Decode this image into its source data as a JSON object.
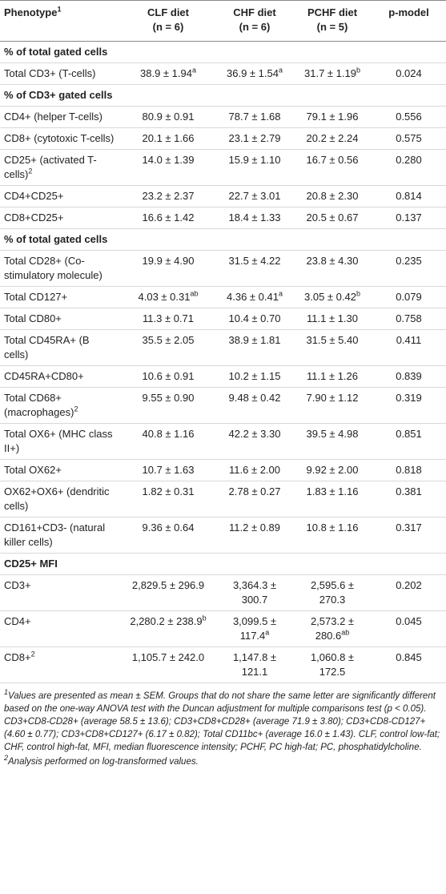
{
  "table": {
    "header": [
      {
        "text": "Phenotype",
        "sup": "1"
      },
      [
        "CLF diet",
        "(n = 6)"
      ],
      [
        "CHF diet",
        "(n = 6)"
      ],
      [
        "PCHF diet",
        "(n = 5)"
      ],
      "p-model"
    ],
    "rows": [
      {
        "section": "% of total gated cells"
      },
      {
        "cells": [
          "Total CD3+ (T-cells)",
          {
            "text": "38.9 ± 1.94",
            "sup": "a"
          },
          {
            "text": "36.9 ± 1.54",
            "sup": "a"
          },
          {
            "text": "31.7 ± 1.19",
            "sup": "b"
          },
          "0.024"
        ]
      },
      {
        "section": "% of CD3+ gated cells"
      },
      {
        "cells": [
          "CD4+ (helper T-cells)",
          "80.9 ± 0.91",
          "78.7 ± 1.68",
          "79.1 ± 1.96",
          "0.556"
        ]
      },
      {
        "cells": [
          "CD8+ (cytotoxic T-cells)",
          "20.1 ± 1.66",
          "23.1 ± 2.79",
          "20.2 ± 2.24",
          "0.575"
        ]
      },
      {
        "cells": [
          {
            "text": "CD25+ (activated T-cells)",
            "sup": "2"
          },
          "14.0 ± 1.39",
          "15.9 ± 1.10",
          "16.7 ± 0.56",
          "0.280"
        ]
      },
      {
        "cells": [
          "CD4+CD25+",
          "23.2 ± 2.37",
          "22.7 ± 3.01",
          "20.8 ± 2.30",
          "0.814"
        ]
      },
      {
        "cells": [
          "CD8+CD25+",
          "16.6 ± 1.42",
          "18.4 ± 1.33",
          "20.5 ± 0.67",
          "0.137"
        ]
      },
      {
        "section": "% of total gated cells"
      },
      {
        "cells": [
          "Total CD28+ (Co-stimulatory molecule)",
          "19.9 ± 4.90",
          "31.5 ± 4.22",
          "23.8 ± 4.30",
          "0.235"
        ]
      },
      {
        "cells": [
          "Total CD127+",
          {
            "text": "4.03 ± 0.31",
            "sup": "ab"
          },
          {
            "text": "4.36 ± 0.41",
            "sup": "a"
          },
          {
            "text": "3.05 ± 0.42",
            "sup": "b"
          },
          "0.079"
        ]
      },
      {
        "cells": [
          "Total CD80+",
          "11.3 ± 0.71",
          "10.4 ± 0.70",
          "11.1 ± 1.30",
          "0.758"
        ]
      },
      {
        "cells": [
          "Total CD45RA+ (B cells)",
          "35.5 ± 2.05",
          "38.9 ± 1.81",
          "31.5 ± 5.40",
          "0.411"
        ]
      },
      {
        "cells": [
          "CD45RA+CD80+",
          "10.6 ± 0.91",
          "10.2 ± 1.15",
          "11.1 ± 1.26",
          "0.839"
        ]
      },
      {
        "cells": [
          {
            "text": "Total CD68+ (macrophages)",
            "sup": "2"
          },
          "9.55 ± 0.90",
          "9.48 ± 0.42",
          "7.90 ± 1.12",
          "0.319"
        ]
      },
      {
        "cells": [
          "Total OX6+ (MHC class II+)",
          "40.8 ± 1.16",
          "42.2 ± 3.30",
          "39.5 ± 4.98",
          "0.851"
        ]
      },
      {
        "cells": [
          "Total OX62+",
          "10.7 ± 1.63",
          "11.6 ± 2.00",
          "9.92 ± 2.00",
          "0.818"
        ]
      },
      {
        "cells": [
          "OX62+OX6+ (dendritic cells)",
          "1.82 ± 0.31",
          "2.78 ± 0.27",
          "1.83 ± 1.16",
          "0.381"
        ]
      },
      {
        "cells": [
          "CD161+CD3- (natural killer cells)",
          "9.36 ± 0.64",
          "11.2 ± 0.89",
          "10.8 ± 1.16",
          "0.317"
        ]
      },
      {
        "section": "CD25+ MFI"
      },
      {
        "cells": [
          "CD3+",
          "2,829.5 ± 296.9",
          "3,364.3 ± 300.7",
          "2,595.6 ± 270.3",
          "0.202"
        ]
      },
      {
        "cells": [
          "CD4+",
          {
            "text": "2,280.2 ± 238.9",
            "sup": "b"
          },
          {
            "text": "3,099.5 ± 117.4",
            "sup": "a"
          },
          {
            "text": "2,573.2 ± 280.6",
            "sup": "ab"
          },
          "0.045"
        ]
      },
      {
        "cells": [
          {
            "text": "CD8+",
            "sup": "2"
          },
          "1,105.7 ± 242.0",
          "1,147.8 ± 121.1",
          "1,060.8 ± 172.5",
          "0.845"
        ]
      }
    ]
  },
  "footnotes": [
    {
      "mark": "1",
      "text": "Values are presented as mean ± SEM. Groups that do not share the same letter are significantly different based on the one-way ANOVA test with the Duncan adjustment for multiple comparisons test (p < 0.05). CD3+CD8-CD28+ (average 58.5 ± 13.6); CD3+CD8+CD28+ (average 71.9 ± 3.80); CD3+CD8-CD127+ (4.60 ± 0.77); CD3+CD8+CD127+ (6.17 ± 0.82); Total CD11bc+ (average 16.0 ± 1.43). CLF, control low-fat; CHF, control high-fat, MFI, median fluorescence intensity; PCHF, PC high-fat; PC, phosphatidylcholine."
    },
    {
      "mark": "2",
      "text": "Analysis performed on log-transformed values."
    }
  ]
}
